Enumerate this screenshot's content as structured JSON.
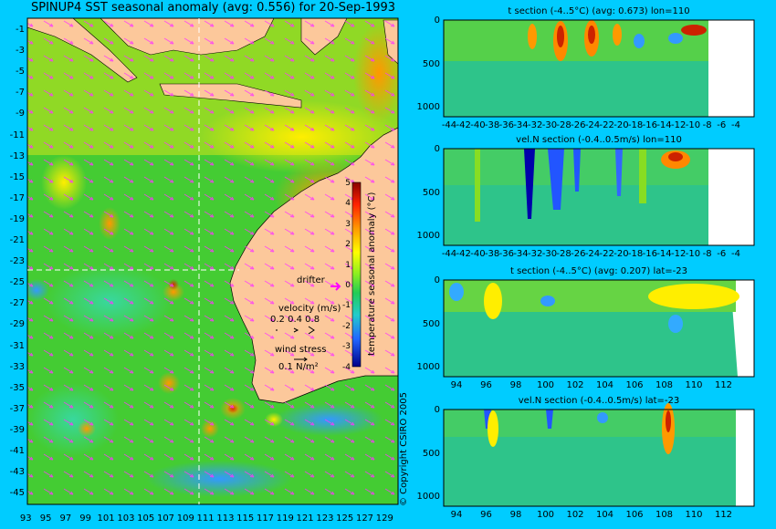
{
  "main_map": {
    "title": "SPINUP4 SST seasonal anomaly (avg: 0.556) for 20-Sep-1993",
    "x_ticks": [
      "93",
      "95",
      "97",
      "99",
      "101",
      "103",
      "105",
      "107",
      "109",
      "111",
      "113",
      "115",
      "117",
      "119",
      "121",
      "123",
      "125",
      "127",
      "129"
    ],
    "y_ticks": [
      "-1",
      "-3",
      "-5",
      "-7",
      "-9",
      "-11",
      "-13",
      "-15",
      "-17",
      "-19",
      "-21",
      "-23",
      "-25",
      "-27",
      "-29",
      "-31",
      "-33",
      "-35",
      "-37",
      "-39",
      "-41",
      "-43",
      "-45"
    ],
    "colorbar": {
      "label": "temperature seasonal anomaly (°C)",
      "ticks": [
        "5",
        "4",
        "3",
        "2",
        "1",
        "0",
        "-1",
        "-2",
        "-3",
        "-4"
      ]
    },
    "legend": {
      "drifter": "drifter",
      "velocity_label": "velocity (m/s)",
      "velocity_scale": "0.2 0.4 0.8",
      "wind_label": "wind stress",
      "wind_scale": "0.1 N/m²"
    },
    "colors": {
      "land": "#fcc89b",
      "ocean_mid": "#33cc33",
      "warm": "#ff9900",
      "hot": "#cc2200",
      "cool": "#3399ff",
      "arrow": "#ff33ff"
    }
  },
  "panels": [
    {
      "title": "t section (-4..5°C) (avg: 0.673) lon=110",
      "x_ticks": [
        "-44",
        "-42",
        "-40",
        "-38",
        "-36",
        "-34",
        "-32",
        "-30",
        "-28",
        "-26",
        "-24",
        "-22",
        "-20",
        "-18",
        "-16",
        "-14",
        "-12",
        "-10",
        "-8",
        "-6",
        "-4"
      ],
      "y_ticks": [
        "0",
        "500",
        "1000"
      ]
    },
    {
      "title": "vel.N section (-0.4..0.5m/s) lon=110",
      "x_ticks": [
        "-44",
        "-42",
        "-40",
        "-38",
        "-36",
        "-34",
        "-32",
        "-30",
        "-28",
        "-26",
        "-24",
        "-22",
        "-20",
        "-18",
        "-16",
        "-14",
        "-12",
        "-10",
        "-8",
        "-6",
        "-4"
      ],
      "y_ticks": [
        "0",
        "500",
        "1000"
      ]
    },
    {
      "title": "t section (-4..5°C) (avg: 0.207) lat=-23",
      "x_ticks": [
        "94",
        "96",
        "98",
        "100",
        "102",
        "104",
        "106",
        "108",
        "110",
        "112"
      ],
      "y_ticks": [
        "0",
        "500",
        "1000"
      ]
    },
    {
      "title": "vel.N section (-0.4..0.5m/s) lat=-23",
      "x_ticks": [
        "94",
        "96",
        "98",
        "100",
        "102",
        "104",
        "106",
        "108",
        "110",
        "112"
      ],
      "y_ticks": [
        "0",
        "500",
        "1000"
      ]
    }
  ],
  "copyright": "© Copyright CSIRO 2005"
}
